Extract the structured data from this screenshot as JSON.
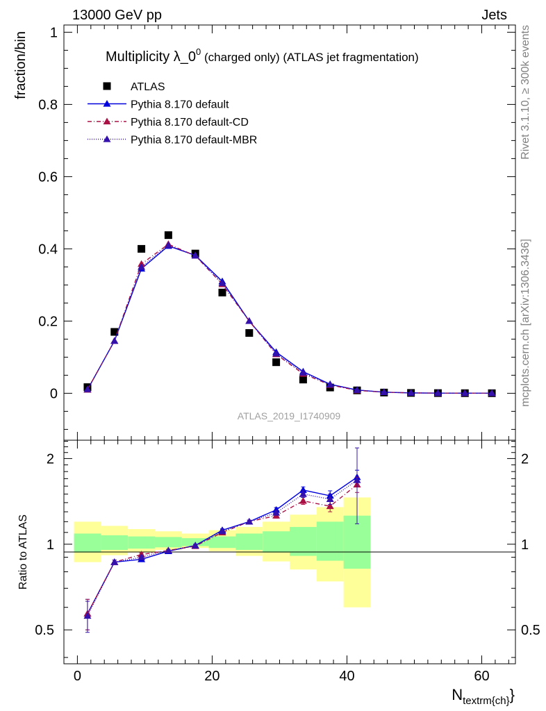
{
  "header": {
    "left": "13000 GeV pp",
    "right": "Jets"
  },
  "side_text": {
    "top": "Rivet 3.1.10, ≥ 300k events",
    "bottom": "mcplots.cern.ch [arXiv:1306.3436]"
  },
  "watermark": "ATLAS_2019_I1740909",
  "chart_data": [
    {
      "type": "scatter",
      "panel": "main",
      "title": "Multiplicity λ_0",
      "title_superscript": "0",
      "title_suffix": " (charged only) (ATLAS jet fragmentation)",
      "ylabel": "fraction/bin",
      "xlim": [
        -2,
        65
      ],
      "ylim": [
        -0.13,
        1.02
      ],
      "y_ticks": [
        "0",
        "0.2",
        "0.4",
        "0.6",
        "0.8",
        "1"
      ],
      "legend_position": "top-left",
      "x": [
        1.5,
        5.5,
        9.5,
        13.5,
        17.5,
        21.5,
        25.5,
        29.5,
        33.5,
        37.5,
        41.5,
        45.5,
        49.5,
        53.5,
        57.5,
        61.5
      ],
      "series": [
        {
          "name": "ATLAS",
          "color": "#000000",
          "marker": "square",
          "values": [
            0.017,
            0.17,
            0.4,
            0.438,
            0.387,
            0.279,
            0.167,
            0.086,
            0.038,
            0.016,
            0.008,
            0.002,
            0.001,
            0.0005,
            0.0003,
            0.0002
          ]
        },
        {
          "name": "Pythia 8.170 default",
          "color": "#0000dd",
          "marker": "triangle",
          "line": "solid",
          "values": [
            0.01,
            0.145,
            0.345,
            0.408,
            0.382,
            0.31,
            0.2,
            0.114,
            0.06,
            0.025,
            0.009,
            0.003,
            0.001,
            0.0005,
            0.0003,
            0.0002
          ]
        },
        {
          "name": "Pythia 8.170 default-CD",
          "color": "#aa1144",
          "marker": "triangle",
          "line": "dashdot",
          "values": [
            0.01,
            0.145,
            0.358,
            0.413,
            0.381,
            0.302,
            0.2,
            0.108,
            0.054,
            0.023,
            0.008,
            0.003,
            0.001,
            0.0005,
            0.0003,
            0.0002
          ]
        },
        {
          "name": "Pythia 8.170 default-MBR",
          "color": "#3311aa",
          "marker": "triangle",
          "line": "dotted",
          "values": [
            0.011,
            0.145,
            0.35,
            0.41,
            0.381,
            0.305,
            0.2,
            0.11,
            0.057,
            0.024,
            0.009,
            0.003,
            0.001,
            0.0005,
            0.0003,
            0.0002
          ]
        }
      ]
    },
    {
      "type": "line",
      "panel": "ratio",
      "ylabel": "Ratio to ATLAS",
      "xlabel": "N",
      "xlabel_subscript": "textrm{ch}",
      "xlabel_suffix": "}",
      "xlim": [
        -2,
        65
      ],
      "ylim": [
        0.38,
        2.32
      ],
      "y_ticks": [
        "0.5",
        "1",
        "2"
      ],
      "x_ticks": [
        "0",
        "20",
        "40",
        "60"
      ],
      "y_scale": "log",
      "reference_line": 1,
      "band_edges": [
        -0.5,
        3.5,
        7.5,
        11.5,
        15.5,
        19.5,
        23.5,
        27.5,
        31.5,
        35.5,
        39.5,
        43.5
      ],
      "yellow_band": {
        "color": "#ffff99",
        "low": [
          0.865,
          0.915,
          0.935,
          0.955,
          0.97,
          0.945,
          0.91,
          0.87,
          0.815,
          0.74,
          0.6
        ],
        "high": [
          1.2,
          1.16,
          1.13,
          1.11,
          1.09,
          1.12,
          1.15,
          1.2,
          1.27,
          1.35,
          1.46
        ]
      },
      "green_band": {
        "color": "#99ff99",
        "low": [
          0.935,
          0.955,
          0.965,
          0.975,
          0.985,
          0.97,
          0.955,
          0.935,
          0.91,
          0.875,
          0.82
        ],
        "high": [
          1.09,
          1.075,
          1.065,
          1.06,
          1.05,
          1.065,
          1.09,
          1.11,
          1.15,
          1.2,
          1.26
        ]
      },
      "x": [
        1.5,
        5.5,
        9.5,
        13.5,
        17.5,
        21.5,
        25.5,
        29.5,
        33.5,
        37.5,
        41.5
      ],
      "series": [
        {
          "name": "Pythia 8.170 default",
          "color": "#0000dd",
          "line": "solid",
          "values": [
            0.57,
            0.865,
            0.885,
            0.945,
            0.99,
            1.12,
            1.2,
            1.32,
            1.55,
            1.48,
            1.72
          ],
          "errors": [
            0.07,
            0.015,
            0.012,
            0.01,
            0.01,
            0.012,
            0.015,
            0.025,
            0.04,
            0.06,
            0.1
          ]
        },
        {
          "name": "Pythia 8.170 default-CD",
          "color": "#aa1144",
          "line": "dashdot",
          "values": [
            0.57,
            0.865,
            0.92,
            0.95,
            0.985,
            1.1,
            1.2,
            1.26,
            1.42,
            1.36,
            1.62
          ],
          "errors": [
            0.07,
            0.015,
            0.012,
            0.01,
            0.01,
            0.012,
            0.015,
            0.025,
            0.04,
            0.06,
            0.1
          ]
        },
        {
          "name": "Pythia 8.170 default-MBR",
          "color": "#3311aa",
          "line": "dotted",
          "values": [
            0.56,
            0.865,
            0.9,
            0.95,
            0.988,
            1.11,
            1.2,
            1.29,
            1.5,
            1.44,
            1.68
          ],
          "errors": [
            0.07,
            0.015,
            0.012,
            0.01,
            0.01,
            0.012,
            0.015,
            0.025,
            0.04,
            0.06,
            0.5
          ]
        }
      ]
    }
  ]
}
